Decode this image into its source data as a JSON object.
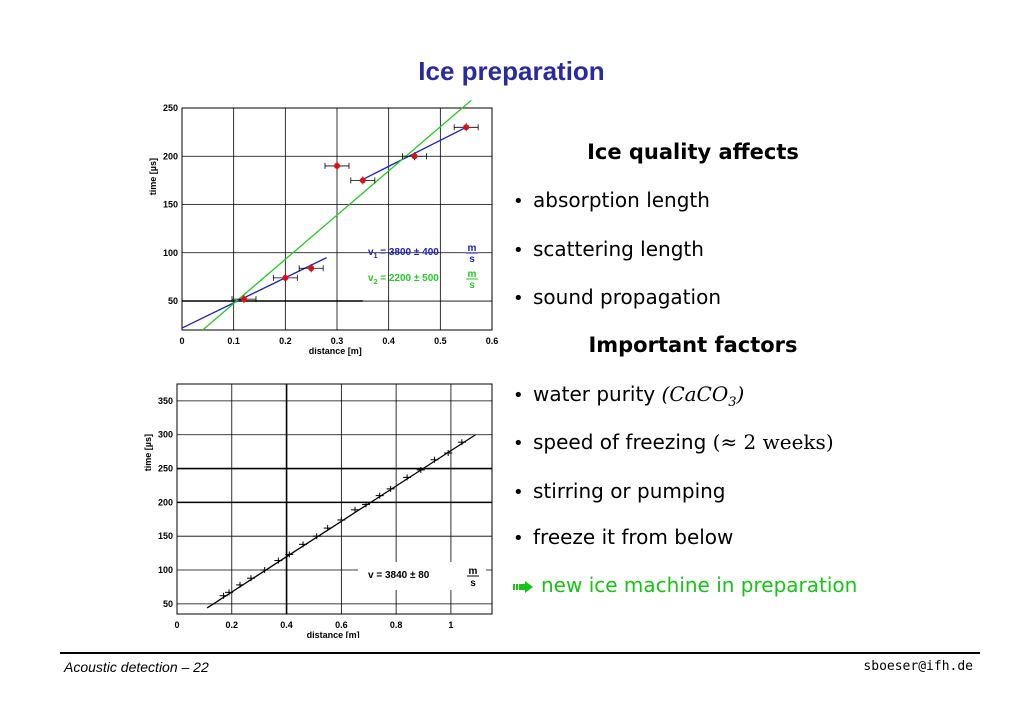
{
  "title": "Ice preparation",
  "chart_data": [
    {
      "type": "scatter",
      "xlabel": "distance [m]",
      "ylabel": "time [µs]",
      "xlim": [
        0,
        0.6
      ],
      "ylim": [
        20,
        250
      ],
      "xticks": [
        "0",
        "0.1",
        "0.2",
        "0.3",
        "0.4",
        "0.5",
        "0.6"
      ],
      "yticks": [
        "50",
        "100",
        "150",
        "200",
        "250"
      ],
      "grid": true,
      "points": [
        {
          "x": 0.12,
          "y": 52
        },
        {
          "x": 0.2,
          "y": 74
        },
        {
          "x": 0.25,
          "y": 84
        },
        {
          "x": 0.3,
          "y": 190
        },
        {
          "x": 0.35,
          "y": 175
        },
        {
          "x": 0.45,
          "y": 200
        },
        {
          "x": 0.55,
          "y": 230
        }
      ],
      "fits": [
        {
          "name": "v1",
          "color": "#2020c0",
          "label_v": "v",
          "label_sub": "1",
          "label_rest": " = 3800 ± 400 ",
          "unit_top": "m",
          "unit_bottom": "s",
          "x": [
            0,
            0.28
          ],
          "y": [
            22,
            95
          ]
        },
        {
          "name": "v1b",
          "color": "#2020c0",
          "x": [
            0.35,
            0.55
          ],
          "y": [
            176,
            230
          ]
        },
        {
          "name": "v2",
          "color": "#22cc22",
          "label_v": "v",
          "label_sub": "2",
          "label_rest": " = 2200 ± 500 ",
          "unit_top": "m",
          "unit_bottom": "s",
          "x": [
            0.04,
            0.56
          ],
          "y": [
            20,
            258
          ]
        }
      ]
    },
    {
      "type": "scatter",
      "xlabel": "distance [m]",
      "ylabel": "time [µs]",
      "xlim": [
        0,
        1.15
      ],
      "ylim": [
        35,
        375
      ],
      "xticks": [
        "0",
        "0.2",
        "0.4",
        "0.6",
        "0.8",
        "1"
      ],
      "yticks": [
        "50",
        "100",
        "150",
        "200",
        "250",
        "300",
        "350"
      ],
      "grid": true,
      "annotation": "v = 3840 ± 80 ",
      "annotation_unit_top": "m",
      "annotation_unit_bottom": "s",
      "points": [
        {
          "x": 0.17,
          "y": 62
        },
        {
          "x": 0.19,
          "y": 67
        },
        {
          "x": 0.23,
          "y": 78
        },
        {
          "x": 0.27,
          "y": 88
        },
        {
          "x": 0.32,
          "y": 100
        },
        {
          "x": 0.37,
          "y": 114
        },
        {
          "x": 0.41,
          "y": 123
        },
        {
          "x": 0.46,
          "y": 138
        },
        {
          "x": 0.51,
          "y": 150
        },
        {
          "x": 0.55,
          "y": 162
        },
        {
          "x": 0.6,
          "y": 174
        },
        {
          "x": 0.65,
          "y": 189
        },
        {
          "x": 0.69,
          "y": 197
        },
        {
          "x": 0.74,
          "y": 210
        },
        {
          "x": 0.78,
          "y": 220
        },
        {
          "x": 0.84,
          "y": 237
        },
        {
          "x": 0.89,
          "y": 248
        },
        {
          "x": 0.94,
          "y": 263
        },
        {
          "x": 0.99,
          "y": 273
        },
        {
          "x": 1.04,
          "y": 289
        }
      ],
      "fit": {
        "x": [
          0.11,
          1.09
        ],
        "y": [
          44,
          300
        ]
      }
    }
  ],
  "bullets": {
    "heading1": "Ice quality affects",
    "items1": [
      "absorption length",
      "scattering length",
      "sound propagation"
    ],
    "heading2": "Important factors",
    "water_purity": "water purity ",
    "water_formula": "(CaCO",
    "water_formula_sub": "3",
    "water_formula_end": ")",
    "speed": "speed of freezing ",
    "speed_math": "(≈ 2 weeks)",
    "stirring": "stirring or pumping",
    "freeze": "freeze it from below",
    "new_machine": "new ice machine in preparation",
    "new_machine_color": "#16c416",
    "bullet_glyph": "•",
    "arrow_icon": "green-arrow-icon"
  },
  "footer": {
    "left": "Acoustic detection – 22",
    "right": "sboeser@ifh.de"
  }
}
